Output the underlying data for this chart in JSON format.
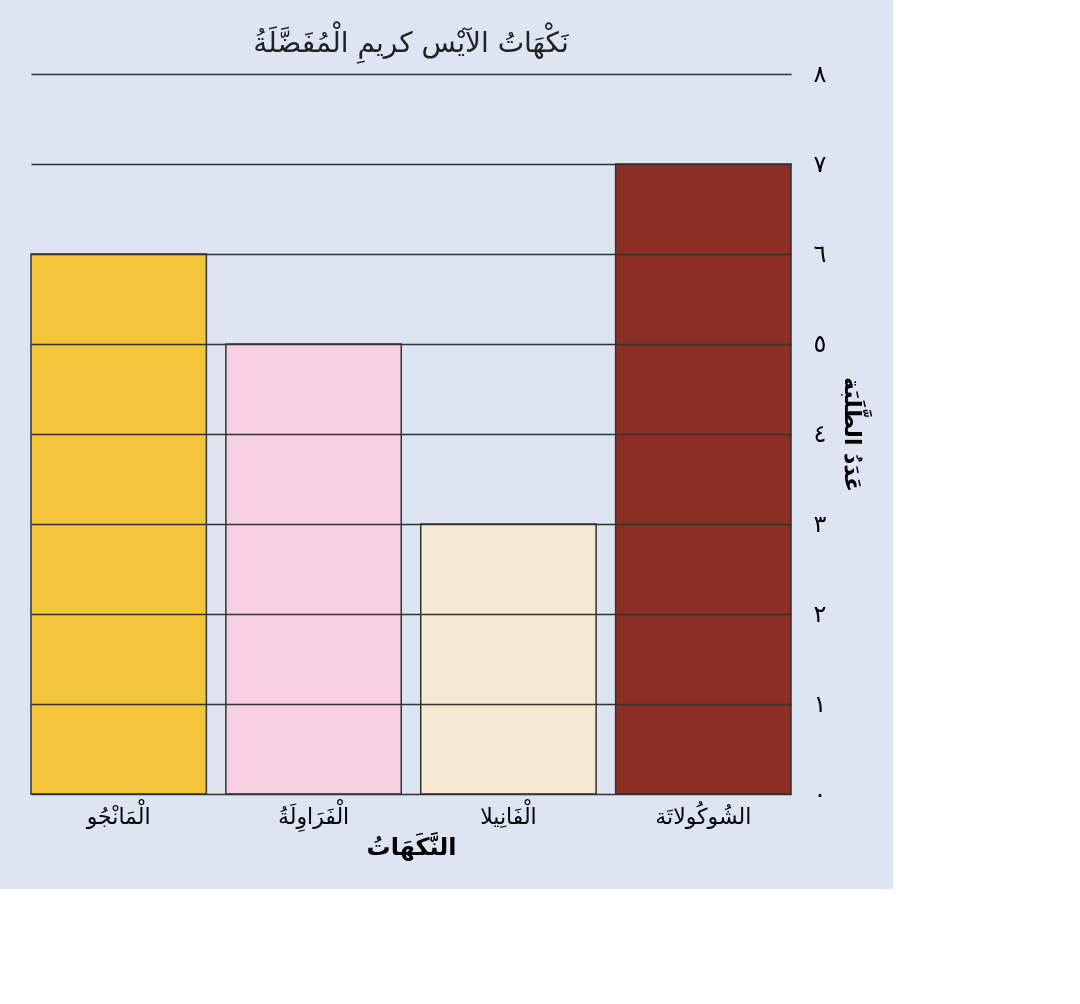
{
  "chart_data": {
    "type": "bar",
    "title": "نَكْهَاتُ الآيْس كريمِ الْمُفَضَّلَةُ",
    "xlabel": "النَّكَهَاتُ",
    "ylabel": "عَدَدُ الطَّلَبَة",
    "categories": [
      "الْمَانْجُو",
      "الْفَرَاوِلَةُ",
      "الْفَانِيلا",
      "الشُوكُولاتَة"
    ],
    "values": [
      6,
      5,
      3,
      7
    ],
    "colors": [
      "#f2c53a",
      "#f6cfe0",
      "#f5e9d2",
      "#8b2e24"
    ],
    "ylim": [
      0,
      8
    ],
    "yticks": [
      {
        "value": 0,
        "label": "٠"
      },
      {
        "value": 1,
        "label": "١"
      },
      {
        "value": 2,
        "label": "٢"
      },
      {
        "value": 3,
        "label": "٣"
      },
      {
        "value": 4,
        "label": "٤"
      },
      {
        "value": 5,
        "label": "٥"
      },
      {
        "value": 6,
        "label": "٦"
      },
      {
        "value": 7,
        "label": "٧"
      },
      {
        "value": 8,
        "label": "٨"
      }
    ],
    "grid": "y"
  }
}
